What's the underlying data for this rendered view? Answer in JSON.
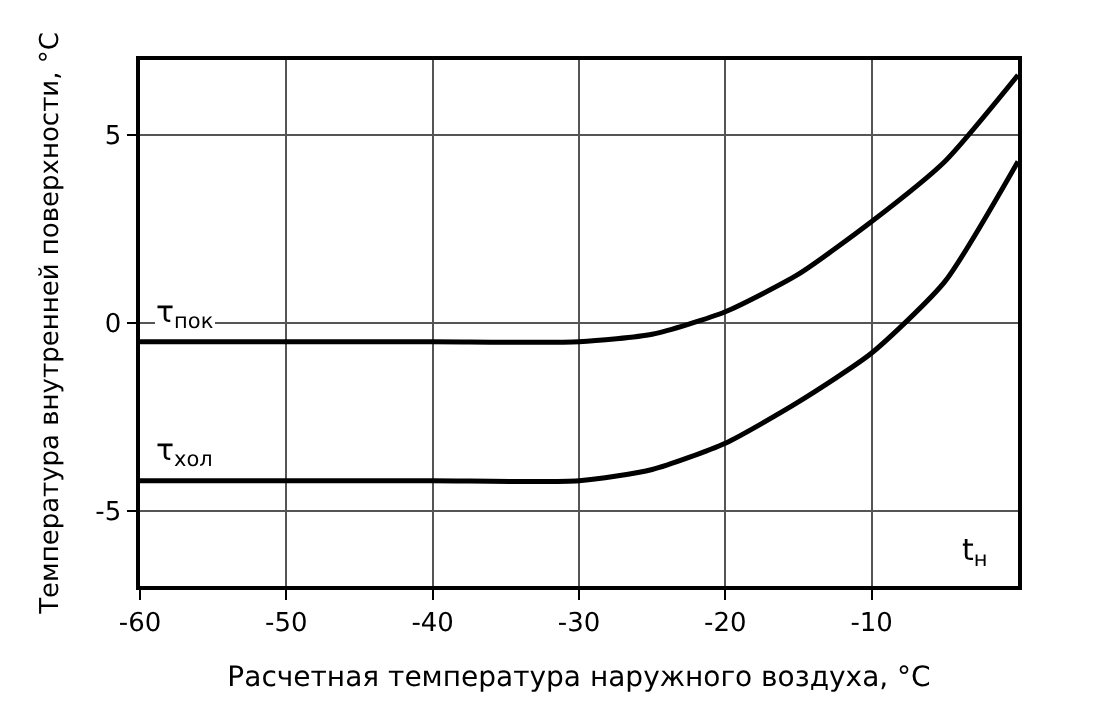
{
  "chart_data": {
    "type": "line",
    "xlabel": "Расчетная температура наружного воздуха, °C",
    "ylabel": "Температура внутренней поверхности, °C",
    "x": [
      -60,
      -50,
      -40,
      -30,
      -25,
      -20,
      -15,
      -10,
      -5,
      0
    ],
    "series": [
      {
        "name": "τ$_{пок}$",
        "color": "#000000",
        "values": [
          -0.5,
          -0.5,
          -0.5,
          -0.5,
          -0.3,
          0.3,
          1.3,
          2.7,
          4.3,
          6.6
        ]
      },
      {
        "name": "τ$_{хол}$",
        "color": "#000000",
        "values": [
          -4.2,
          -4.2,
          -4.2,
          -4.2,
          -3.9,
          -3.2,
          -2.1,
          -0.8,
          1.1,
          4.3
        ]
      }
    ],
    "annotations": [
      "t$_{н}$"
    ],
    "xlim": [
      -60,
      0
    ],
    "xticks": [
      -60,
      -50,
      -40,
      -30,
      -20,
      -10
    ],
    "ylim": [
      -7,
      7
    ],
    "yticks": [
      -5,
      0,
      5
    ],
    "grid": true,
    "legend": false,
    "marker": "none",
    "line_style": "solid"
  }
}
